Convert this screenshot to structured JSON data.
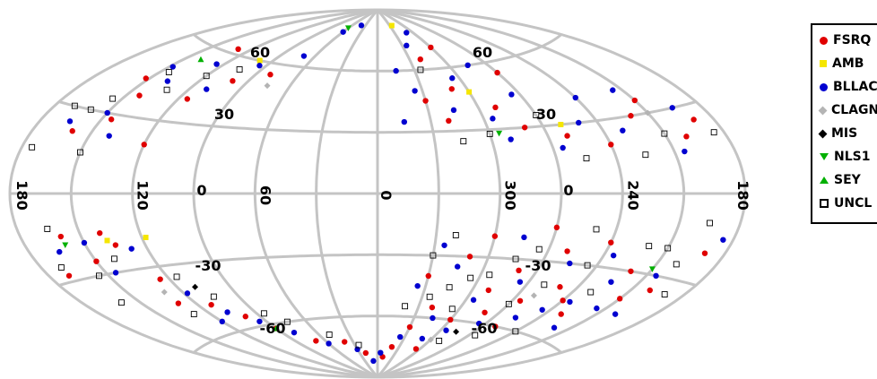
{
  "chart_data": {
    "type": "scatter",
    "projection": "aitoff",
    "coordinate_system": "galactic",
    "legend_position": "right",
    "grid": true,
    "longitude_labels": [
      "180",
      "120",
      "60",
      "0",
      "300",
      "240",
      "180"
    ],
    "longitude_values": [
      180,
      120,
      60,
      0,
      -60,
      -120,
      -180
    ],
    "latitude_labels": [
      "60",
      "30",
      "0",
      "-30",
      "-60"
    ],
    "latitude_values": [
      60,
      30,
      0,
      -30,
      -60
    ],
    "series": [
      {
        "name": "FSRQ",
        "color": "#e00000",
        "marker": "circle",
        "points": [
          [
            152,
            44
          ],
          [
            143,
            38
          ],
          [
            130,
            62
          ],
          [
            115,
            40
          ],
          [
            100,
            50
          ],
          [
            80,
            55
          ],
          [
            120,
            20
          ],
          [
            160,
            22
          ],
          [
            145,
            28
          ],
          [
            135,
            -20
          ],
          [
            150,
            -25
          ],
          [
            125,
            -35
          ],
          [
            112,
            -48
          ],
          [
            130,
            -45
          ],
          [
            100,
            -55
          ],
          [
            90,
            -62
          ],
          [
            70,
            -70
          ],
          [
            40,
            -72
          ],
          [
            20,
            -78
          ],
          [
            160,
            -15
          ],
          [
            140,
            -15
          ],
          [
            170,
            -28
          ],
          [
            -30,
            45
          ],
          [
            -40,
            35
          ],
          [
            -50,
            50
          ],
          [
            -70,
            40
          ],
          [
            -80,
            30
          ],
          [
            -100,
            25
          ],
          [
            -120,
            20
          ],
          [
            -140,
            30
          ],
          [
            -150,
            35
          ],
          [
            -160,
            20
          ],
          [
            -170,
            25
          ],
          [
            -90,
            55
          ],
          [
            -40,
            65
          ],
          [
            -60,
            70
          ],
          [
            -30,
            -40
          ],
          [
            -50,
            -30
          ],
          [
            -70,
            -45
          ],
          [
            -80,
            -35
          ],
          [
            -100,
            -25
          ],
          [
            -120,
            -20
          ],
          [
            -140,
            -30
          ],
          [
            -160,
            -35
          ],
          [
            -40,
            -55
          ],
          [
            -60,
            -60
          ],
          [
            -80,
            -55
          ],
          [
            -20,
            -75
          ],
          [
            -10,
            -80
          ],
          [
            -100,
            -60
          ],
          [
            -130,
            -50
          ],
          [
            -150,
            -40
          ],
          [
            -170,
            -20
          ],
          [
            -110,
            -40
          ],
          [
            -90,
            -15
          ],
          [
            -60,
            -20
          ],
          [
            -30,
            -65
          ],
          [
            -55,
            -75
          ],
          [
            -120,
            -45
          ],
          [
            -95,
            -48
          ]
        ]
      },
      {
        "name": "AMB",
        "color": "#f5e600",
        "marker": "square",
        "points": [
          [
            100,
            60
          ],
          [
            118,
            -18
          ],
          [
            138,
            -18
          ],
          [
            -60,
            48
          ],
          [
            -100,
            30
          ],
          [
            -35,
            82
          ]
        ]
      },
      {
        "name": "BLLAC",
        "color": "#0000d0",
        "marker": "circle",
        "points": [
          [
            148,
            50
          ],
          [
            138,
            45
          ],
          [
            125,
            55
          ],
          [
            110,
            45
          ],
          [
            95,
            58
          ],
          [
            70,
            65
          ],
          [
            150,
            30
          ],
          [
            165,
            25
          ],
          [
            140,
            22
          ],
          [
            128,
            -22
          ],
          [
            145,
            -30
          ],
          [
            118,
            -42
          ],
          [
            108,
            -52
          ],
          [
            120,
            -55
          ],
          [
            95,
            -58
          ],
          [
            80,
            -65
          ],
          [
            60,
            -72
          ],
          [
            30,
            -76
          ],
          [
            10,
            -82
          ],
          [
            165,
            -20
          ],
          [
            150,
            -18
          ],
          [
            -25,
            50
          ],
          [
            -45,
            40
          ],
          [
            -55,
            55
          ],
          [
            -65,
            35
          ],
          [
            -85,
            45
          ],
          [
            -95,
            20
          ],
          [
            -110,
            30
          ],
          [
            -130,
            25
          ],
          [
            -145,
            40
          ],
          [
            -155,
            15
          ],
          [
            -165,
            30
          ],
          [
            -75,
            60
          ],
          [
            -35,
            72
          ],
          [
            -50,
            78
          ],
          [
            -15,
            60
          ],
          [
            -25,
            -45
          ],
          [
            -45,
            -35
          ],
          [
            -65,
            -50
          ],
          [
            -85,
            -40
          ],
          [
            -105,
            -30
          ],
          [
            -125,
            -25
          ],
          [
            -135,
            -35
          ],
          [
            -155,
            -30
          ],
          [
            -45,
            -60
          ],
          [
            -65,
            -65
          ],
          [
            -85,
            -60
          ],
          [
            -25,
            -70
          ],
          [
            -5,
            -78
          ],
          [
            -105,
            -55
          ],
          [
            -125,
            -45
          ],
          [
            -145,
            -45
          ],
          [
            -175,
            -15
          ],
          [
            -115,
            -50
          ],
          [
            -75,
            -20
          ],
          [
            -35,
            -25
          ],
          [
            -50,
            -70
          ],
          [
            -140,
            -55
          ],
          [
            -160,
            -45
          ],
          [
            -70,
            25
          ],
          [
            -120,
            40
          ],
          [
            -15,
            35
          ],
          [
            40,
            82
          ],
          [
            60,
            78
          ]
        ]
      },
      {
        "name": "CLAGN",
        "color": "#b4b4b4",
        "marker": "diamond",
        "points": [
          [
            130,
            -40
          ],
          [
            -60,
            -70
          ],
          [
            -150,
            30
          ],
          [
            -100,
            -45
          ],
          [
            75,
            50
          ]
        ]
      },
      {
        "name": "MIS",
        "color": "#000000",
        "marker": "diamond",
        "points": [
          [
            -75,
            -65
          ],
          [
            110,
            -40
          ]
        ]
      },
      {
        "name": "NLS1",
        "color": "#00b000",
        "marker": "triangle-down",
        "points": [
          [
            160,
            -18
          ],
          [
            -65,
            28
          ],
          [
            -150,
            -28
          ],
          [
            60,
            80
          ]
        ]
      },
      {
        "name": "SEY",
        "color": "#00b000",
        "marker": "triangle-up",
        "points": [
          [
            140,
            55
          ],
          [
            90,
            -62
          ]
        ]
      },
      {
        "name": "UNCL",
        "color": "#000000",
        "marker": "open-square",
        "points": [
          [
            155,
            35
          ],
          [
            145,
            48
          ],
          [
            132,
            42
          ],
          [
            120,
            50
          ],
          [
            105,
            55
          ],
          [
            170,
            30
          ],
          [
            160,
            30
          ],
          [
            150,
            15
          ],
          [
            140,
            -25
          ],
          [
            155,
            -30
          ],
          [
            130,
            -50
          ],
          [
            115,
            -35
          ],
          [
            105,
            -45
          ],
          [
            85,
            -55
          ],
          [
            75,
            -60
          ],
          [
            50,
            -68
          ],
          [
            25,
            -74
          ],
          [
            170,
            -25
          ],
          [
            160,
            -40
          ],
          [
            -35,
            60
          ],
          [
            -45,
            25
          ],
          [
            -60,
            28
          ],
          [
            -90,
            35
          ],
          [
            -105,
            15
          ],
          [
            -135,
            15
          ],
          [
            -150,
            22
          ],
          [
            -175,
            20
          ],
          [
            -40,
            -20
          ],
          [
            -55,
            -40
          ],
          [
            -75,
            -30
          ],
          [
            -90,
            -50
          ],
          [
            -110,
            -15
          ],
          [
            -130,
            -40
          ],
          [
            -150,
            -20
          ],
          [
            -170,
            -35
          ],
          [
            -35,
            -50
          ],
          [
            -55,
            -55
          ],
          [
            -70,
            -70
          ],
          [
            -95,
            -65
          ],
          [
            -115,
            -30
          ],
          [
            -140,
            -20
          ],
          [
            -160,
            -25
          ],
          [
            -20,
            -55
          ],
          [
            -30,
            -30
          ],
          [
            -85,
            -25
          ],
          [
            -120,
            -60
          ],
          [
            -45,
            -45
          ],
          [
            -65,
            -38
          ],
          [
            -100,
            -40
          ],
          [
            -165,
            -10
          ],
          [
            165,
            -12
          ],
          [
            175,
            15
          ]
        ]
      }
    ]
  }
}
